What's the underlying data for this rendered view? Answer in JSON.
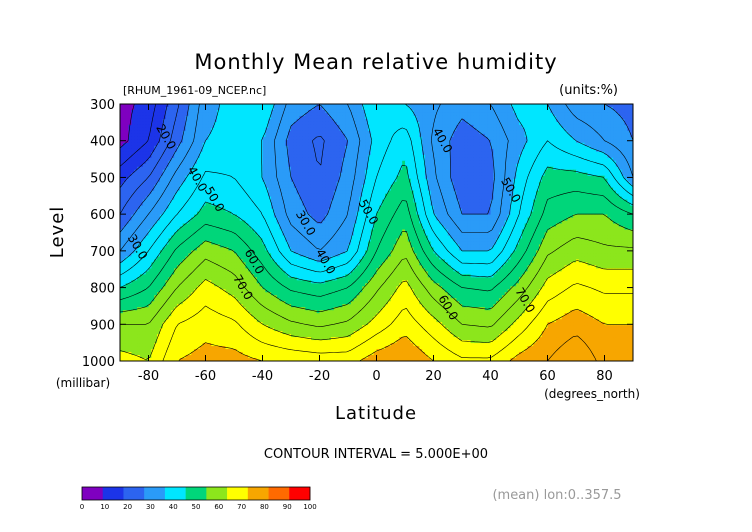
{
  "chart_data": {
    "type": "contour",
    "title": "Monthly Mean relative humidity",
    "file_label": "[RHUM_1961-09_NCEP.nc]",
    "units_label": "(units:%)",
    "xlabel": "Latitude",
    "ylabel": "Level",
    "x_units": "(degrees_north)",
    "y_units": "(millibar)",
    "xlim": [
      -90,
      90
    ],
    "ylim": [
      1000,
      300
    ],
    "x_ticks": [
      -80,
      -60,
      -40,
      -20,
      0,
      20,
      40,
      60,
      80
    ],
    "y_ticks": [
      300,
      400,
      500,
      600,
      700,
      800,
      900,
      1000
    ],
    "contour_interval_text": "CONTOUR INTERVAL = 5.000E+00",
    "subtitle": "(mean) lon:0..357.5",
    "colorbar": {
      "ticks": [
        "0",
        "10",
        "20",
        "30",
        "40",
        "50",
        "60",
        "70",
        "80",
        "90",
        "100"
      ],
      "colors": [
        "#7f00c0",
        "#1c34e8",
        "#2c64f0",
        "#2a9bf8",
        "#00e6ff",
        "#00d67a",
        "#8ce61c",
        "#ffff00",
        "#f7a600",
        "#ff6a00",
        "#ff0000"
      ]
    },
    "x": [
      -90,
      -80,
      -70,
      -60,
      -50,
      -40,
      -30,
      -20,
      -10,
      0,
      10,
      20,
      30,
      40,
      50,
      60,
      70,
      80,
      90
    ],
    "levels": [
      1000,
      900,
      800,
      700,
      600,
      500,
      400,
      300
    ],
    "values": [
      [
        72,
        70,
        80,
        82,
        82,
        80,
        79,
        78,
        78,
        83,
        85,
        80,
        76,
        76,
        82,
        85,
        90,
        83,
        84
      ],
      [
        65,
        65,
        75,
        78,
        76,
        70,
        66,
        64,
        66,
        72,
        78,
        72,
        65,
        64,
        72,
        80,
        83,
        80,
        80
      ],
      [
        50,
        55,
        65,
        72,
        68,
        60,
        54,
        52,
        55,
        64,
        72,
        62,
        55,
        54,
        62,
        72,
        76,
        74,
        74
      ],
      [
        35,
        45,
        56,
        63,
        60,
        52,
        40,
        35,
        40,
        55,
        64,
        50,
        40,
        40,
        52,
        64,
        68,
        66,
        66
      ],
      [
        25,
        35,
        45,
        52,
        50,
        45,
        33,
        28,
        35,
        50,
        58,
        40,
        30,
        30,
        45,
        57,
        60,
        60,
        55
      ],
      [
        18,
        25,
        37,
        46,
        45,
        40,
        30,
        25,
        32,
        45,
        52,
        36,
        26,
        28,
        42,
        52,
        52,
        50,
        35
      ],
      [
        8,
        15,
        28,
        40,
        42,
        40,
        28,
        24,
        30,
        42,
        48,
        34,
        27,
        30,
        38,
        45,
        40,
        35,
        30
      ],
      [
        8,
        12,
        24,
        38,
        42,
        45,
        33,
        30,
        35,
        45,
        40,
        36,
        32,
        35,
        42,
        40,
        32,
        30,
        28
      ]
    ],
    "contour_labels": [
      {
        "x": -74,
        "level": 390,
        "text": "20.0"
      },
      {
        "x": -63,
        "level": 505,
        "text": "40.0"
      },
      {
        "x": -57,
        "level": 560,
        "text": "50.0"
      },
      {
        "x": -84,
        "level": 690,
        "text": "30.0"
      },
      {
        "x": -43,
        "level": 730,
        "text": "60.0"
      },
      {
        "x": -47,
        "level": 800,
        "text": "70.0"
      },
      {
        "x": -25,
        "level": 625,
        "text": "30.0"
      },
      {
        "x": -18,
        "level": 730,
        "text": "40.0"
      },
      {
        "x": -3,
        "level": 595,
        "text": "50.0"
      },
      {
        "x": 23,
        "level": 400,
        "text": "40.0"
      },
      {
        "x": 47,
        "level": 535,
        "text": "50.0"
      },
      {
        "x": 25,
        "level": 855,
        "text": "60.0"
      },
      {
        "x": 52,
        "level": 835,
        "text": "70.0"
      }
    ]
  }
}
